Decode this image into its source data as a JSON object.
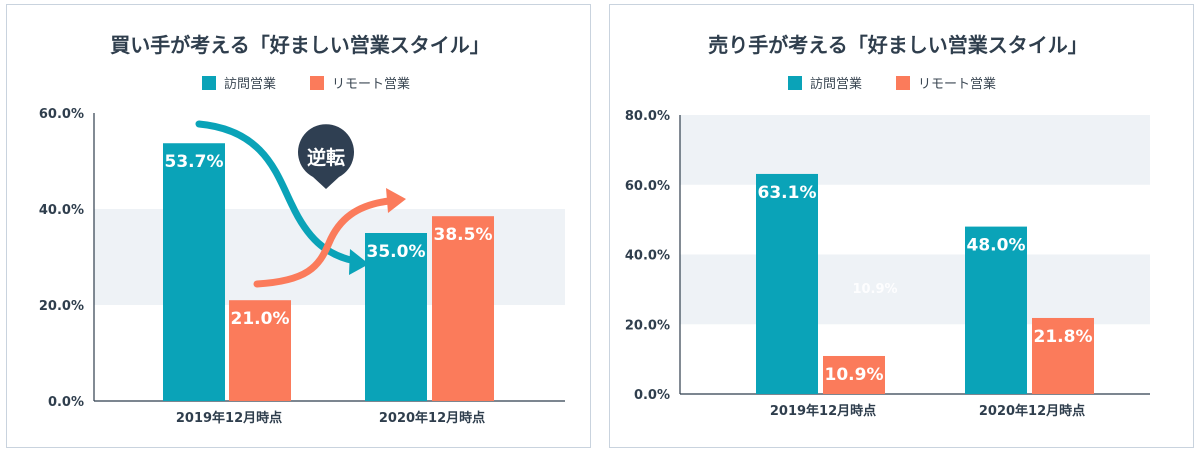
{
  "colors": {
    "visit": "#0aa3b8",
    "remote": "#fb7b5b",
    "band": "#eef2f6",
    "axis": "#2f3e4d",
    "callout": "#2f3f52"
  },
  "legend": {
    "visit": "訪問営業",
    "remote": "リモート営業"
  },
  "chart_data": [
    {
      "type": "bar",
      "title": "買い手が考える「好ましい営業スタイル」",
      "categories": [
        "2019年12月時点",
        "2020年12月時点"
      ],
      "series": [
        {
          "name": "訪問営業",
          "values": [
            53.7,
            35.0
          ]
        },
        {
          "name": "リモート営業",
          "values": [
            21.0,
            38.5
          ]
        }
      ],
      "value_labels": [
        [
          "53.7%",
          "35.0%"
        ],
        [
          "21.0%",
          "38.5%"
        ]
      ],
      "yticks": [
        0,
        20,
        40,
        60
      ],
      "ytick_labels": [
        "0.0%",
        "20.0%",
        "40.0%",
        "60.0%"
      ],
      "ylim": [
        0,
        60
      ],
      "annotation": "逆転",
      "grid": false,
      "legend_position": "top-center"
    },
    {
      "type": "bar",
      "title": "売り手が考える「好ましい営業スタイル」",
      "categories": [
        "2019年12月時点",
        "2020年12月時点"
      ],
      "series": [
        {
          "name": "訪問営業",
          "values": [
            63.1,
            48.0
          ]
        },
        {
          "name": "リモート営業",
          "values": [
            10.9,
            21.8
          ]
        }
      ],
      "value_labels": [
        [
          "63.1%",
          "48.0%"
        ],
        [
          "10.9%",
          "21.8%"
        ]
      ],
      "ghost_label": "10.9%",
      "yticks": [
        0,
        20,
        40,
        60,
        80
      ],
      "ytick_labels": [
        "0.0%",
        "20.0%",
        "40.0%",
        "60.0%",
        "80.0%"
      ],
      "ylim": [
        0,
        80
      ],
      "grid": false,
      "legend_position": "top-center"
    }
  ]
}
